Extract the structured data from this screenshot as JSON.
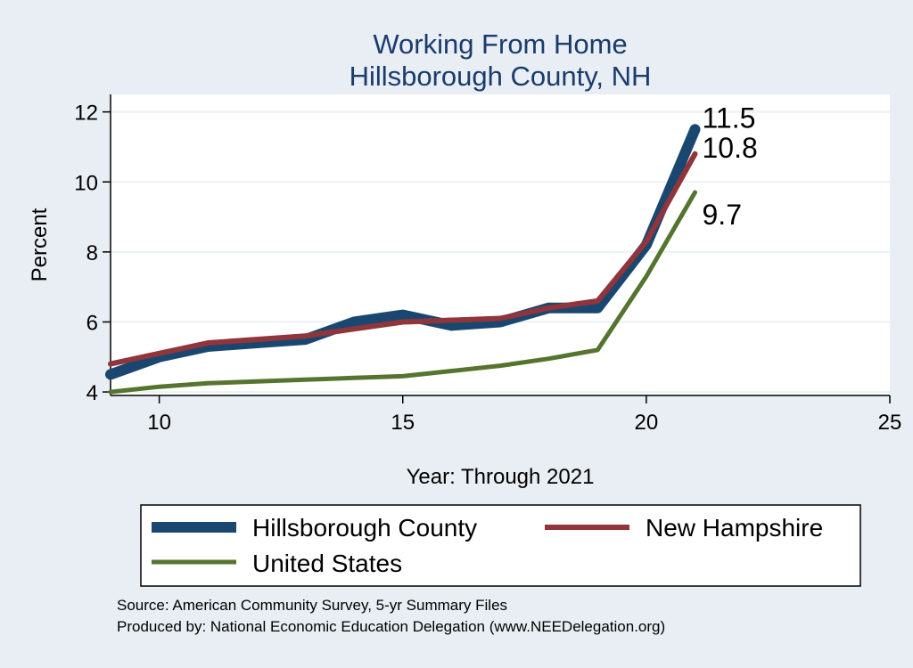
{
  "chart_data": {
    "type": "line",
    "title": [
      "Working From Home",
      "Hillsborough County, NH"
    ],
    "xlabel": "Year: Through 2021",
    "ylabel": "Percent",
    "xlim": [
      9,
      25
    ],
    "ylim": [
      3.9,
      12.5
    ],
    "xticks": [
      10,
      15,
      20,
      25
    ],
    "yticks": [
      4,
      6,
      8,
      10,
      12
    ],
    "grid": "horizontal",
    "legend_position": "bottom",
    "series": [
      {
        "name": "Hillsborough County",
        "color": "#1a476f",
        "x": [
          9,
          10,
          11,
          12,
          13,
          14,
          15,
          16,
          17,
          18,
          19,
          20,
          21
        ],
        "y": [
          4.5,
          5.0,
          5.3,
          5.4,
          5.5,
          6.0,
          6.2,
          5.9,
          6.0,
          6.4,
          6.4,
          8.2,
          11.5
        ],
        "end_label": "11.5"
      },
      {
        "name": "New Hampshire",
        "color": "#90353b",
        "x": [
          9,
          10,
          11,
          12,
          13,
          14,
          15,
          16,
          17,
          18,
          19,
          20,
          21
        ],
        "y": [
          4.8,
          5.1,
          5.4,
          5.5,
          5.6,
          5.8,
          6.0,
          6.05,
          6.1,
          6.4,
          6.6,
          8.3,
          10.8
        ],
        "end_label": "10.8"
      },
      {
        "name": "United States",
        "color": "#55752f",
        "x": [
          9,
          10,
          11,
          12,
          13,
          14,
          15,
          16,
          17,
          18,
          19,
          20,
          21
        ],
        "y": [
          4.0,
          4.15,
          4.25,
          4.3,
          4.35,
          4.4,
          4.45,
          4.6,
          4.75,
          4.95,
          5.2,
          7.3,
          9.7
        ],
        "end_label": "9.7"
      }
    ],
    "notes": [
      "Source: American Community Survey, 5-yr Summary Files",
      "Produced by: National Economic Education Delegation (www.NEEDelegation.org)"
    ]
  }
}
